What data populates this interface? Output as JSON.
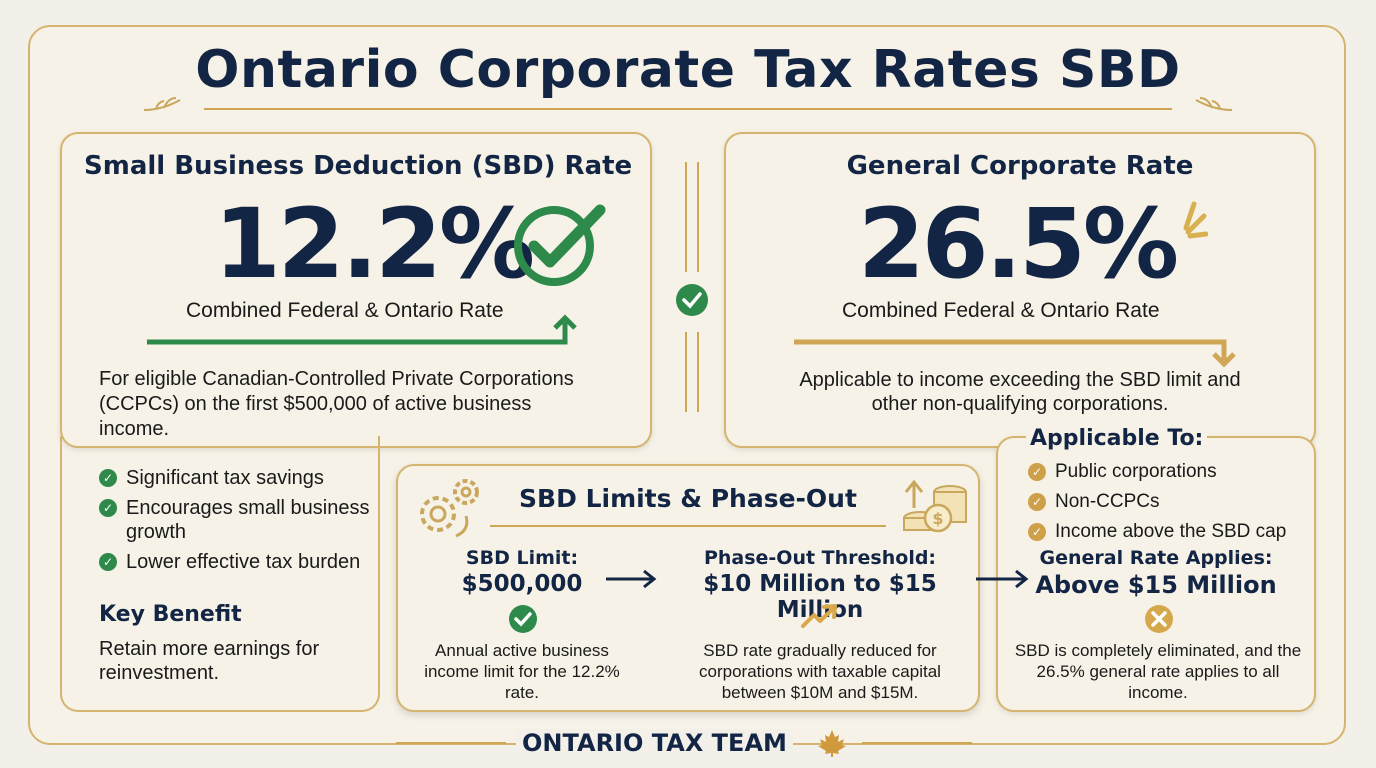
{
  "title": "Ontario Corporate Tax Rates SBD",
  "sbd_panel": {
    "heading": "Small Business Deduction (SBD) Rate",
    "rate": "12.2%",
    "rate_caption": "Combined Federal & Ontario Rate",
    "description": "For eligible Canadian-Controlled Private Corporations (CCPCs) on the first $500,000 of active business income.",
    "benefits": [
      "Significant tax savings",
      "Encourages small business growth",
      "Lower effective tax burden"
    ],
    "key_benefit_heading": "Key Benefit",
    "key_benefit_text": "Retain more earnings for reinvestment."
  },
  "general_panel": {
    "heading": "General Corporate Rate",
    "rate": "26.5%",
    "rate_caption": "Combined Federal & Ontario Rate",
    "description": "Applicable to income exceeding the SBD limit and other non-qualifying corporations.",
    "applicable_heading": "Applicable To:",
    "applicable_items": [
      "Public corporations",
      "Non-CCPCs",
      "Income above the SBD cap"
    ]
  },
  "limits_panel": {
    "heading": "SBD Limits & Phase-Out",
    "sbd_limit_label": "SBD Limit:",
    "sbd_limit_value": "$500,000",
    "sbd_limit_desc": "Annual active business income limit for the 12.2% rate.",
    "phase_label": "Phase-Out Threshold:",
    "phase_value": "$10 Million to $15 Million",
    "phase_desc": "SBD rate gradually reduced for corporations with taxable capital between $10M and $15M."
  },
  "general_applies": {
    "label": "General Rate Applies:",
    "value": "Above $15 Million",
    "desc": "SBD is completely eliminated, and the 26.5% general rate applies to all income."
  },
  "footer": "ONTARIO TAX TEAM",
  "colors": {
    "navy": "#132544",
    "gold": "#d4b46e",
    "green": "#2e8a4a"
  },
  "icons": [
    "check-circle-icon",
    "arrow-up-icon",
    "arrow-down-icon",
    "gears-icon",
    "coin-stack-icon",
    "trend-up-icon",
    "x-circle-icon",
    "maple-leaf-icon"
  ]
}
